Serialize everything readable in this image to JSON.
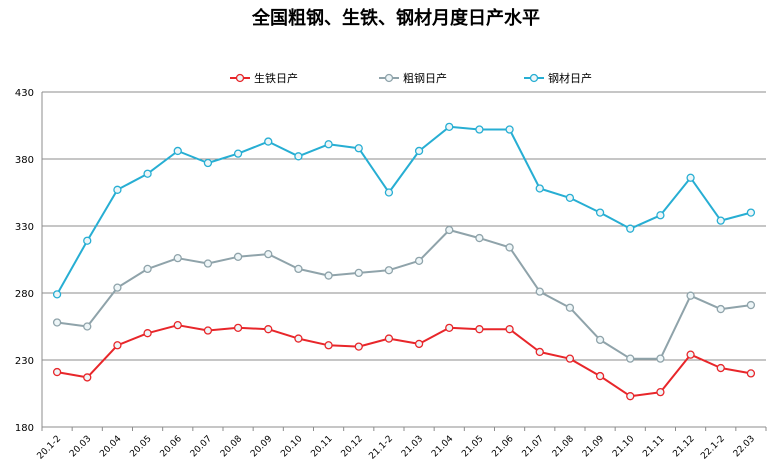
{
  "chart_data": {
    "type": "line",
    "title": "全国粗钢、生铁、钢材月度日产水平",
    "xlabel": "",
    "ylabel": "",
    "ylim": [
      180,
      430
    ],
    "yticks": [
      180,
      230,
      280,
      330,
      380,
      430
    ],
    "grid": true,
    "legend_position": "top",
    "categories": [
      "20.1-2",
      "20.03",
      "20.04",
      "20.05",
      "20.06",
      "20.07",
      "20.08",
      "20.09",
      "20.10",
      "20.11",
      "20.12",
      "21.1-2",
      "21.03",
      "21.04",
      "21.05",
      "21.06",
      "21.07",
      "21.08",
      "21.09",
      "21.10",
      "21.11",
      "21.12",
      "22.1-2",
      "22.03"
    ],
    "series": [
      {
        "name": "生铁日产",
        "color": "#e8262a",
        "values": [
          221,
          217,
          241,
          250,
          256,
          252,
          254,
          253,
          246,
          241,
          240,
          246,
          242,
          254,
          253,
          253,
          236,
          231,
          218,
          203,
          206,
          234,
          224,
          220
        ]
      },
      {
        "name": "粗钢日产",
        "color": "#8fa3aa",
        "values": [
          258,
          255,
          284,
          298,
          306,
          302,
          307,
          309,
          298,
          293,
          295,
          297,
          304,
          327,
          321,
          314,
          281,
          269,
          245,
          231,
          231,
          278,
          268,
          271
        ]
      },
      {
        "name": "钢材日产",
        "color": "#27aed3",
        "values": [
          279,
          319,
          357,
          369,
          386,
          377,
          384,
          393,
          382,
          391,
          388,
          355,
          386,
          404,
          402,
          402,
          358,
          351,
          340,
          328,
          338,
          366,
          334,
          340
        ]
      }
    ]
  }
}
